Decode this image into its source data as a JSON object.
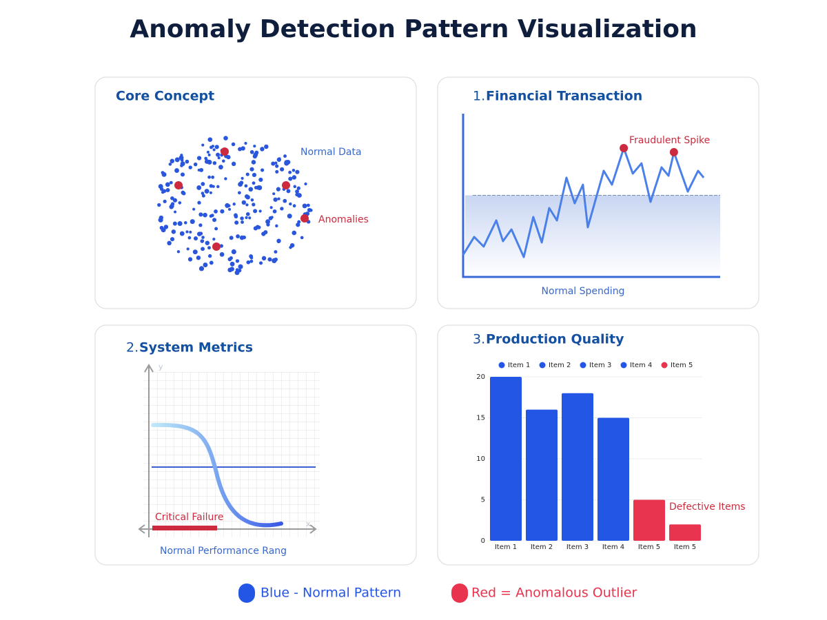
{
  "title": "Anomaly Detection Pattern Visualization",
  "core_concept": {
    "title": "Core Concept",
    "normal_label": "Normal Data",
    "anomaly_label": "Anomalies"
  },
  "system_metrics": {
    "number": "2.",
    "title": "System Metrics",
    "x_axis": "x",
    "y_axis": "y",
    "failure_label": "Critical Failure",
    "range_label": "Normal Performance Rang"
  },
  "chart_data": [
    {
      "type": "line",
      "number": "1.",
      "title": "Financial Transaction",
      "x": [
        0,
        4.3,
        8.0,
        12.9,
        15.5,
        18.8,
        23.6,
        27.3,
        30.6,
        33.5,
        36.5,
        40.2,
        43.4,
        46.6,
        48.5,
        54.7,
        57.9,
        62.5,
        66.0,
        69.4,
        72.9,
        77.2,
        79.9,
        82.0,
        87.4,
        91.4,
        93.6
      ],
      "series": [
        {
          "color": "#4a80e8",
          "values": [
            13.5,
            24.5,
            18.6,
            34.6,
            21.9,
            29.1,
            12.2,
            36.7,
            21.1,
            42.2,
            34.6,
            60.8,
            45.1,
            56.5,
            30.4,
            65.0,
            56.5,
            78.9,
            63.3,
            69.6,
            46.0,
            67.1,
            62.0,
            76.4,
            52.3,
            65.0,
            60.8
          ]
        }
      ],
      "xlim": [
        0,
        100
      ],
      "ylim": [
        0,
        100
      ],
      "threshold": 50,
      "highlight": [
        17,
        23
      ],
      "highlight_color": "#cc2a3e",
      "annotation": "Fraudulent Spike",
      "xlabel": "Normal Spending"
    },
    {
      "type": "bar",
      "number": "3.",
      "title": "Production Quality",
      "categories": [
        "Item 1",
        "Item 2",
        "Item 3",
        "Item 4",
        "Item 5",
        "Item 5"
      ],
      "values": [
        20,
        16,
        18,
        15,
        5,
        2
      ],
      "colors": [
        "#2456e6",
        "#2456e6",
        "#2456e6",
        "#2456e6",
        "#e8344e",
        "#e8344e"
      ],
      "legend": [
        {
          "name": "Item 1",
          "color": "#2456e6"
        },
        {
          "name": "Item 2",
          "color": "#2456e6"
        },
        {
          "name": "Item 3",
          "color": "#2456e6"
        },
        {
          "name": "Item 4",
          "color": "#2456e6"
        },
        {
          "name": "Item 5",
          "color": "#e8344e"
        }
      ],
      "ylim": [
        0,
        20
      ],
      "yticks": [
        0,
        5,
        10,
        15,
        20
      ],
      "grid": true,
      "annotation": "Defective Items"
    }
  ],
  "legend": [
    {
      "label": "Blue - Normal Pattern",
      "color": "#2456e6"
    },
    {
      "label": "Red = Anomalous Outlier",
      "color": "#e8344e"
    }
  ]
}
